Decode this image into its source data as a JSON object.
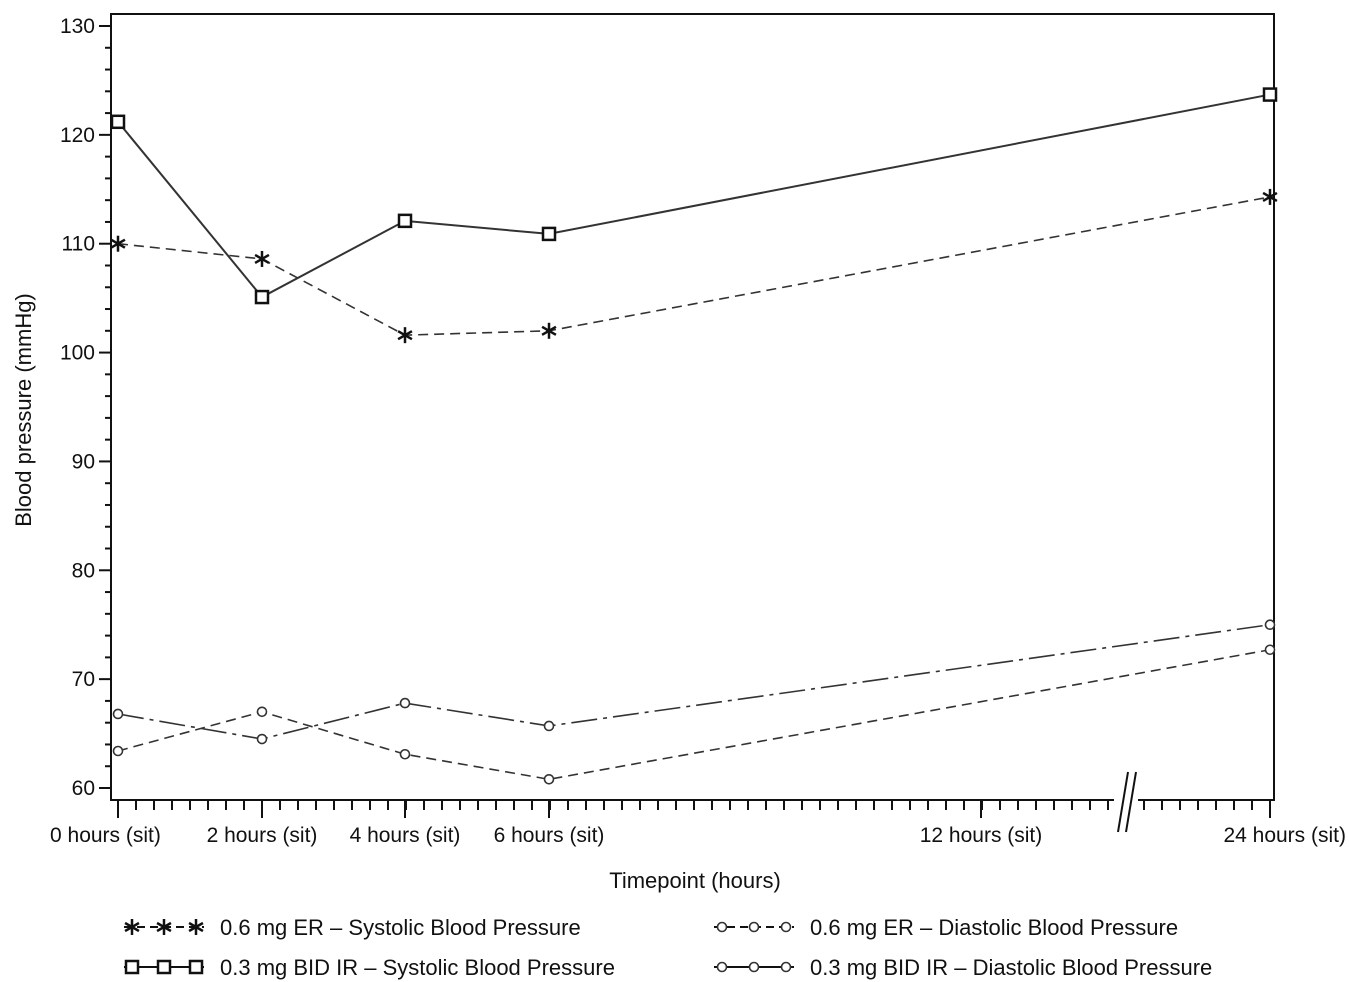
{
  "chart_data": {
    "type": "line",
    "title": "",
    "xlabel": "Timepoint (hours)",
    "ylabel": "Blood pressure (mmHg)",
    "ylim": [
      60,
      130
    ],
    "y_ticks": [
      60,
      70,
      80,
      90,
      100,
      110,
      120,
      130
    ],
    "x_tick_labels": [
      "0 hours (sit)",
      "2 hours (sit)",
      "4 hours (sit)",
      "6 hours (sit)",
      "12 hours (sit)",
      "24 hours (sit)"
    ],
    "x_hours": [
      0,
      2,
      4,
      6,
      12,
      24
    ],
    "axis_break": "between 12 and 24 hours",
    "grid": false,
    "legend_position": "bottom",
    "series": [
      {
        "name": "0.6 mg ER – Systolic Blood Pressure",
        "x": [
          0,
          2,
          4,
          6,
          24
        ],
        "values": [
          110.0,
          108.6,
          101.6,
          102.0,
          114.3
        ],
        "marker": "asterisk",
        "line": "dashed",
        "color": "#333333"
      },
      {
        "name": "0.3 mg BID IR – Systolic Blood Pressure",
        "x": [
          0,
          2,
          4,
          6,
          24
        ],
        "values": [
          121.2,
          105.1,
          112.1,
          110.9,
          123.7
        ],
        "marker": "square",
        "line": "solid",
        "color": "#333333"
      },
      {
        "name": "0.6 mg ER – Diastolic Blood Pressure",
        "x": [
          0,
          2,
          4,
          6,
          24
        ],
        "values": [
          63.4,
          67.0,
          63.1,
          60.8,
          72.7
        ],
        "marker": "circle",
        "line": "dashed",
        "color": "#333333"
      },
      {
        "name": "0.3 mg BID IR – Diastolic Blood Pressure",
        "x": [
          0,
          2,
          4,
          6,
          24
        ],
        "values": [
          66.8,
          64.5,
          67.8,
          65.7,
          75.0
        ],
        "marker": "circle",
        "line": "dashdot",
        "color": "#333333"
      }
    ]
  }
}
